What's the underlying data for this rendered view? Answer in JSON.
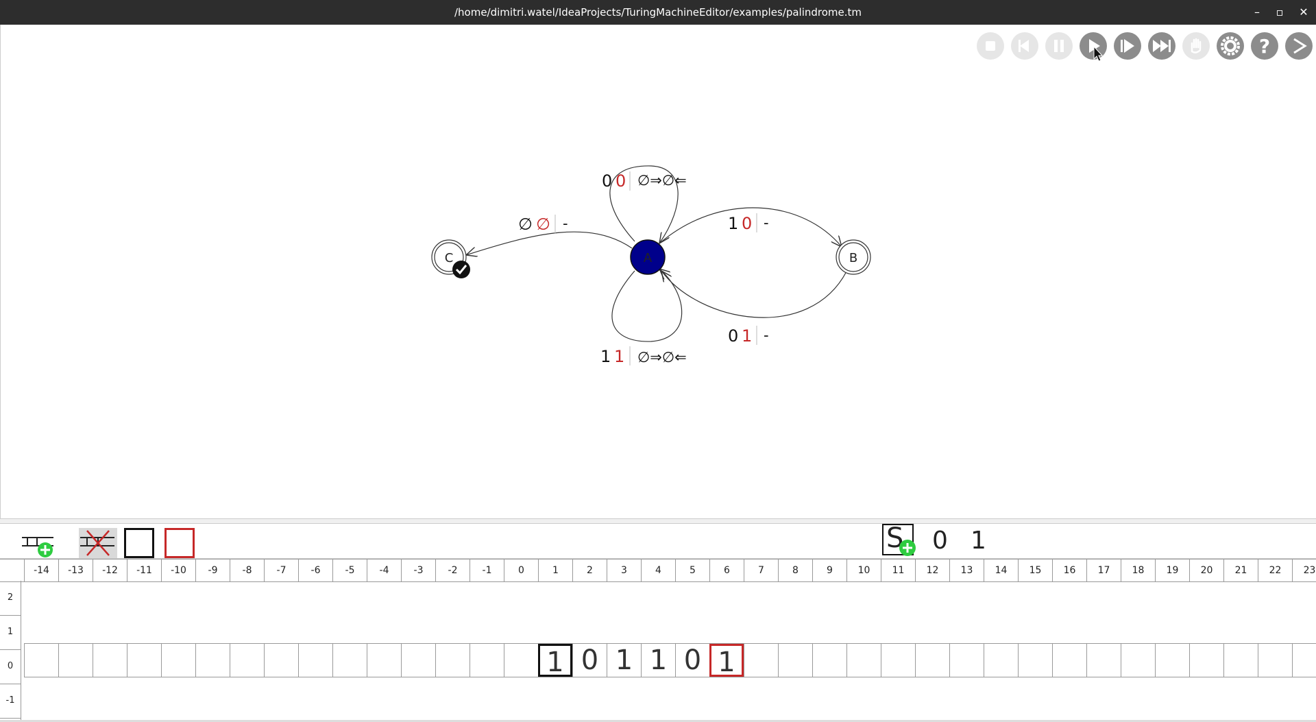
{
  "window": {
    "title": "/home/dimitri.watel/IdeaProjects/TuringMachineEditor/examples/palindrome.tm",
    "minimize": "–",
    "maximize": "▫",
    "close": "✕"
  },
  "toolbar": {
    "items": [
      {
        "name": "stop",
        "icon": "stop-icon",
        "enabled": false
      },
      {
        "name": "previous",
        "icon": "previous-icon",
        "enabled": false
      },
      {
        "name": "pause",
        "icon": "pause-icon",
        "enabled": false
      },
      {
        "name": "play",
        "icon": "play-icon",
        "enabled": true
      },
      {
        "name": "step-forward",
        "icon": "step-forward-icon",
        "enabled": true
      },
      {
        "name": "fast-forward",
        "icon": "fast-forward-icon",
        "enabled": true
      },
      {
        "name": "hand",
        "icon": "hand-icon",
        "enabled": false
      },
      {
        "name": "settings",
        "icon": "gear-icon",
        "enabled": true
      },
      {
        "name": "help",
        "icon": "help-icon",
        "enabled": true
      },
      {
        "name": "next",
        "icon": "chevron-right-icon",
        "enabled": true
      }
    ]
  },
  "graph": {
    "states": [
      {
        "id": "A",
        "label": "A",
        "current": true
      },
      {
        "id": "B",
        "label": "B",
        "accepting": true
      },
      {
        "id": "C",
        "label": "C",
        "accepting": true,
        "final_check": true
      }
    ],
    "transitions": [
      {
        "from": "A",
        "to": "A",
        "read1": "0",
        "read2": "0",
        "action": "∅⇒∅⇐"
      },
      {
        "from": "A",
        "to": "C",
        "read1": "∅",
        "read2": "∅",
        "action": "-"
      },
      {
        "from": "A",
        "to": "B",
        "read1": "1",
        "read2": "0",
        "action": "-"
      },
      {
        "from": "B",
        "to": "A",
        "read1": "0",
        "read2": "1",
        "action": "-"
      },
      {
        "from": "A",
        "to": "A",
        "read1": "1",
        "read2": "1",
        "action": "∅⇒∅⇐"
      }
    ]
  },
  "colors": {
    "current_state": "#00008b",
    "head2": "#c62828",
    "add_green": "#2ecc40"
  },
  "symbols": {
    "values": [
      "0",
      "1"
    ],
    "add_label": "S"
  },
  "ruler": {
    "indices": [
      "-14",
      "-13",
      "-12",
      "-11",
      "-10",
      "-9",
      "-8",
      "-7",
      "-6",
      "-5",
      "-4",
      "-3",
      "-2",
      "-1",
      "0",
      "1",
      "2",
      "3",
      "4",
      "5",
      "6",
      "7",
      "8",
      "9",
      "10",
      "11",
      "12",
      "13",
      "14",
      "15",
      "16",
      "17",
      "18",
      "19",
      "20",
      "21",
      "22",
      "23"
    ]
  },
  "rows": {
    "labels": [
      "2",
      "1",
      "0",
      "-1"
    ]
  },
  "tape": {
    "content": [
      "1",
      "0",
      "1",
      "1",
      "0",
      "1"
    ]
  }
}
